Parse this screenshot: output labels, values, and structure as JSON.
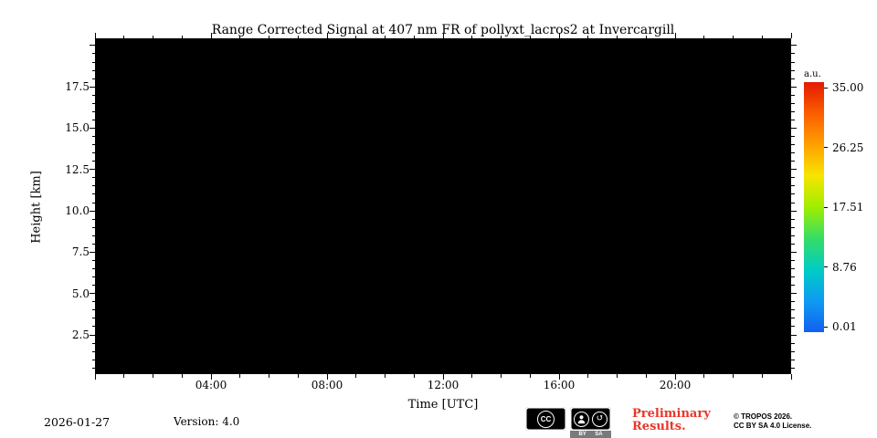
{
  "chart_data": {
    "type": "heatmap",
    "title": "Range Corrected Signal at 407 nm FR of pollyxt_lacros2 at Invercargill",
    "xlabel": "Time [UTC]",
    "ylabel": "Height [km]",
    "x_tick_labels": [
      "04:00",
      "08:00",
      "12:00",
      "16:00",
      "20:00"
    ],
    "x_axis": {
      "min_hours": 0,
      "max_hours": 24,
      "major_step_hours": 4,
      "minor_step_hours": 1
    },
    "y_tick_labels": [
      "17.5",
      "15.0",
      "12.5",
      "10.0",
      "7.5",
      "5.0",
      "2.5"
    ],
    "y_axis": {
      "min_km": 0,
      "max_km": 20.3,
      "major_step_km": 2.5,
      "minor_step_km": 0.5
    },
    "values": "no signal rendered; entire plot area is uniform black",
    "plot_background": "#000000",
    "colorbar": {
      "label": "a.u.",
      "tick_labels": [
        "35.00",
        "26.25",
        "17.51",
        "8.76",
        "0.01"
      ],
      "max": 35.0,
      "min": 0.01,
      "colors_top_to_bottom": [
        "#e31a00",
        "#fb5d00",
        "#ffa000",
        "#f7e400",
        "#9fee00",
        "#35dd66",
        "#00ccc4",
        "#0e9bf2",
        "#1260ef"
      ]
    }
  },
  "footer": {
    "date": "2026-01-27",
    "version": "Version: 4.0",
    "cc_badge_text": "CC",
    "cc_by": "BY",
    "cc_sa": "SA",
    "preliminary_line1": "Preliminary",
    "preliminary_line2": "Results.",
    "preliminary_color": "#e8362a",
    "copyright_line1": "© TROPOS 2026.",
    "copyright_line2": "CC BY SA 4.0 License."
  }
}
